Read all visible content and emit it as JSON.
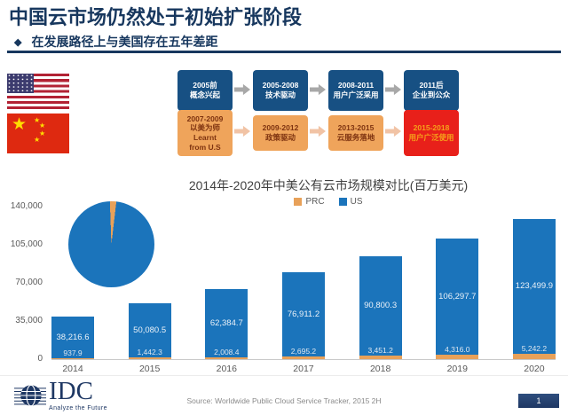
{
  "header": {
    "title": "中国云市场仍然处于初始扩张阶段",
    "bullet_icon": "◆",
    "subtitle": "在发展路径上与美国存在五年差距"
  },
  "timeline": {
    "us_track": [
      {
        "period": "2005前",
        "label": "概念兴起"
      },
      {
        "period": "2005-2008",
        "label": "技术驱动"
      },
      {
        "period": "2008-2011",
        "label": "用户广泛采用"
      },
      {
        "period": "2011后",
        "label": "企业到公众"
      }
    ],
    "cn_track": [
      {
        "period": "2007-2009",
        "label": "以美为师\nLearnt\nfrom U.S"
      },
      {
        "period": "2009-2012",
        "label": "政策驱动"
      },
      {
        "period": "2013-2015",
        "label": "云服务落地"
      },
      {
        "period": "2015-2018",
        "label": "用户广泛使用"
      }
    ]
  },
  "chart_data": {
    "type": "bar",
    "stacked": true,
    "title": "2014年-2020年中美公有云市场规模对比(百万美元)",
    "categories": [
      "2014",
      "2015",
      "2016",
      "2017",
      "2018",
      "2019",
      "2020"
    ],
    "series": [
      {
        "name": "PRC",
        "color": "#E8A159",
        "values": [
          937.9,
          1442.3,
          2008.4,
          2695.2,
          3451.2,
          4316.0,
          5242.2
        ]
      },
      {
        "name": "US",
        "color": "#1B74BB",
        "values": [
          38216.6,
          50080.5,
          62384.7,
          76911.2,
          90800.3,
          106297.7,
          123499.9
        ]
      }
    ],
    "ylim": [
      0,
      140000
    ],
    "ytick_labels": [
      "140,000",
      "105,000",
      "70,000",
      "35,000",
      "0"
    ],
    "grid": false,
    "legend_position": "top-center",
    "inset_pie": {
      "type": "pie",
      "slices": [
        {
          "name": "US",
          "value": 97.6,
          "color": "#1B74BB"
        },
        {
          "name": "PRC",
          "value": 2.4,
          "color": "#E8A159"
        }
      ]
    }
  },
  "footer": {
    "logo_text": "IDC",
    "logo_tagline": "Analyze the Future",
    "source": "Source: Worldwide Public Cloud Service Tracker, 2015 2H",
    "page_number": "1"
  },
  "colors": {
    "navy": "#17375E",
    "bar_blue": "#1B74BB",
    "bar_orange": "#E8A159",
    "highlight_red": "#E8201A",
    "red_box_text": "#F6A01A"
  }
}
